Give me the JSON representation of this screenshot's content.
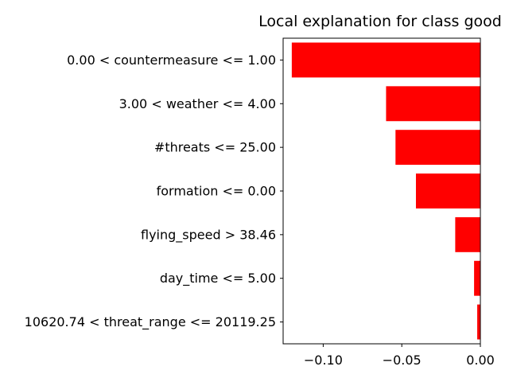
{
  "chart_data": {
    "type": "bar",
    "orientation": "horizontal",
    "title": "Local explanation for class good",
    "xlabel": "",
    "ylabel": "",
    "categories": [
      "0.00 < countermeasure <= 1.00",
      "3.00 < weather <= 4.00",
      "#threats <= 25.00",
      "formation <= 0.00",
      "flying_speed > 38.46",
      "day_time <= 5.00",
      "10620.74 < threat_range <= 20119.25"
    ],
    "values": [
      -0.12,
      -0.06,
      -0.054,
      -0.041,
      -0.016,
      -0.004,
      -0.002
    ],
    "xlim": [
      -0.1255,
      0.0
    ],
    "xticks": [
      -0.1,
      -0.05,
      0.0
    ],
    "xtick_labels": [
      "−0.10",
      "−0.05",
      "0.00"
    ],
    "bar_color": "#ff0000",
    "grid": false,
    "legend": "none"
  }
}
